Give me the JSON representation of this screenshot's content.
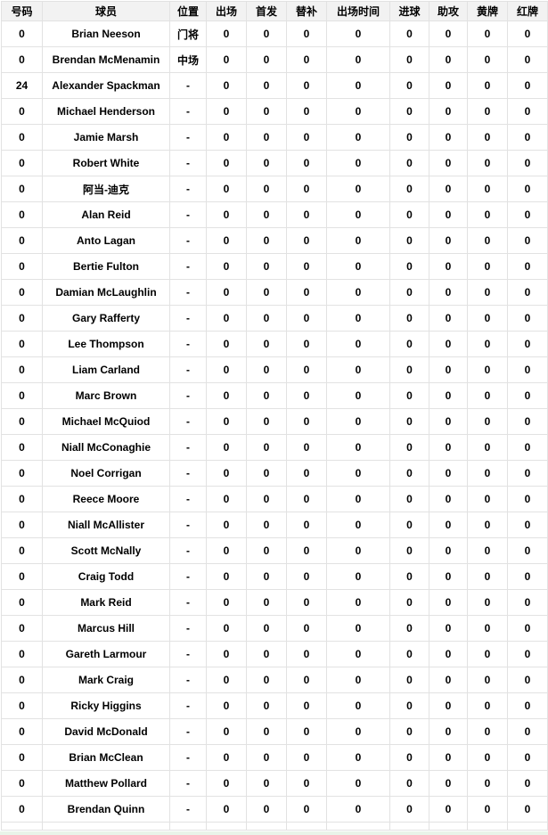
{
  "colors": {
    "header_background": "#f2f2f2",
    "row_background": "#ffffff",
    "border": "#e2e2e2",
    "text": "#000000",
    "page_bottom_strip": "#e9f4e9"
  },
  "table": {
    "columns": [
      {
        "key": "number",
        "label": "号码"
      },
      {
        "key": "player",
        "label": "球员"
      },
      {
        "key": "position",
        "label": "位置"
      },
      {
        "key": "appearances",
        "label": "出场"
      },
      {
        "key": "starts",
        "label": "首发"
      },
      {
        "key": "subs",
        "label": "替补"
      },
      {
        "key": "minutes",
        "label": "出场时间"
      },
      {
        "key": "goals",
        "label": "进球"
      },
      {
        "key": "assists",
        "label": "助攻"
      },
      {
        "key": "yellow_cards",
        "label": "黄牌"
      },
      {
        "key": "red_cards",
        "label": "红牌"
      }
    ],
    "rows": [
      [
        "0",
        "Brian Neeson",
        "门将",
        "0",
        "0",
        "0",
        "0",
        "0",
        "0",
        "0",
        "0"
      ],
      [
        "0",
        "Brendan McMenamin",
        "中场",
        "0",
        "0",
        "0",
        "0",
        "0",
        "0",
        "0",
        "0"
      ],
      [
        "24",
        "Alexander Spackman",
        "-",
        "0",
        "0",
        "0",
        "0",
        "0",
        "0",
        "0",
        "0"
      ],
      [
        "0",
        "Michael Henderson",
        "-",
        "0",
        "0",
        "0",
        "0",
        "0",
        "0",
        "0",
        "0"
      ],
      [
        "0",
        "Jamie Marsh",
        "-",
        "0",
        "0",
        "0",
        "0",
        "0",
        "0",
        "0",
        "0"
      ],
      [
        "0",
        "Robert White",
        "-",
        "0",
        "0",
        "0",
        "0",
        "0",
        "0",
        "0",
        "0"
      ],
      [
        "0",
        "阿当-迪克",
        "-",
        "0",
        "0",
        "0",
        "0",
        "0",
        "0",
        "0",
        "0"
      ],
      [
        "0",
        "Alan Reid",
        "-",
        "0",
        "0",
        "0",
        "0",
        "0",
        "0",
        "0",
        "0"
      ],
      [
        "0",
        "Anto Lagan",
        "-",
        "0",
        "0",
        "0",
        "0",
        "0",
        "0",
        "0",
        "0"
      ],
      [
        "0",
        "Bertie Fulton",
        "-",
        "0",
        "0",
        "0",
        "0",
        "0",
        "0",
        "0",
        "0"
      ],
      [
        "0",
        "Damian McLaughlin",
        "-",
        "0",
        "0",
        "0",
        "0",
        "0",
        "0",
        "0",
        "0"
      ],
      [
        "0",
        "Gary Rafferty",
        "-",
        "0",
        "0",
        "0",
        "0",
        "0",
        "0",
        "0",
        "0"
      ],
      [
        "0",
        "Lee Thompson",
        "-",
        "0",
        "0",
        "0",
        "0",
        "0",
        "0",
        "0",
        "0"
      ],
      [
        "0",
        "Liam Carland",
        "-",
        "0",
        "0",
        "0",
        "0",
        "0",
        "0",
        "0",
        "0"
      ],
      [
        "0",
        "Marc Brown",
        "-",
        "0",
        "0",
        "0",
        "0",
        "0",
        "0",
        "0",
        "0"
      ],
      [
        "0",
        "Michael McQuiod",
        "-",
        "0",
        "0",
        "0",
        "0",
        "0",
        "0",
        "0",
        "0"
      ],
      [
        "0",
        "Niall McConaghie",
        "-",
        "0",
        "0",
        "0",
        "0",
        "0",
        "0",
        "0",
        "0"
      ],
      [
        "0",
        "Noel Corrigan",
        "-",
        "0",
        "0",
        "0",
        "0",
        "0",
        "0",
        "0",
        "0"
      ],
      [
        "0",
        "Reece Moore",
        "-",
        "0",
        "0",
        "0",
        "0",
        "0",
        "0",
        "0",
        "0"
      ],
      [
        "0",
        "Niall McAllister",
        "-",
        "0",
        "0",
        "0",
        "0",
        "0",
        "0",
        "0",
        "0"
      ],
      [
        "0",
        "Scott McNally",
        "-",
        "0",
        "0",
        "0",
        "0",
        "0",
        "0",
        "0",
        "0"
      ],
      [
        "0",
        "Craig Todd",
        "-",
        "0",
        "0",
        "0",
        "0",
        "0",
        "0",
        "0",
        "0"
      ],
      [
        "0",
        "Mark Reid",
        "-",
        "0",
        "0",
        "0",
        "0",
        "0",
        "0",
        "0",
        "0"
      ],
      [
        "0",
        "Marcus Hill",
        "-",
        "0",
        "0",
        "0",
        "0",
        "0",
        "0",
        "0",
        "0"
      ],
      [
        "0",
        "Gareth Larmour",
        "-",
        "0",
        "0",
        "0",
        "0",
        "0",
        "0",
        "0",
        "0"
      ],
      [
        "0",
        "Mark Craig",
        "-",
        "0",
        "0",
        "0",
        "0",
        "0",
        "0",
        "0",
        "0"
      ],
      [
        "0",
        "Ricky Higgins",
        "-",
        "0",
        "0",
        "0",
        "0",
        "0",
        "0",
        "0",
        "0"
      ],
      [
        "0",
        "David McDonald",
        "-",
        "0",
        "0",
        "0",
        "0",
        "0",
        "0",
        "0",
        "0"
      ],
      [
        "0",
        "Brian McClean",
        "-",
        "0",
        "0",
        "0",
        "0",
        "0",
        "0",
        "0",
        "0"
      ],
      [
        "0",
        "Matthew Pollard",
        "-",
        "0",
        "0",
        "0",
        "0",
        "0",
        "0",
        "0",
        "0"
      ],
      [
        "0",
        "Brendan Quinn",
        "-",
        "0",
        "0",
        "0",
        "0",
        "0",
        "0",
        "0",
        "0"
      ]
    ]
  }
}
